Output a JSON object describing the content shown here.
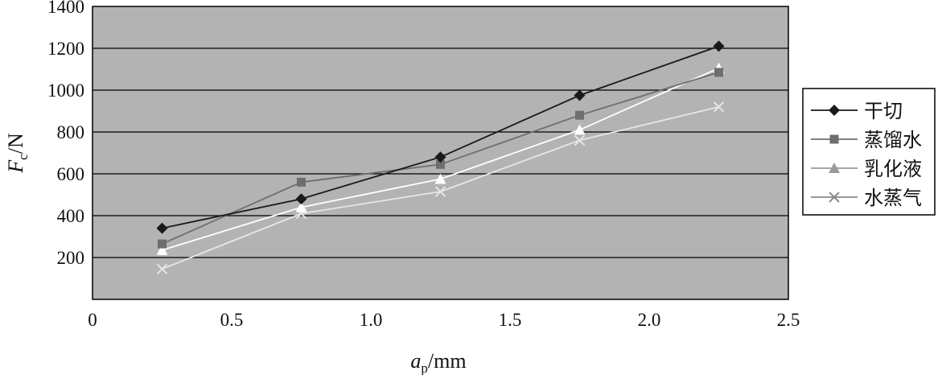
{
  "chart_data": {
    "type": "line",
    "x": [
      0.25,
      0.75,
      1.25,
      1.75,
      2.25
    ],
    "xlim": [
      0,
      2.5
    ],
    "ylim": [
      0,
      1400
    ],
    "xticks": [
      "0",
      "0.5",
      "1.0",
      "1.5",
      "2.0",
      "2.5"
    ],
    "yticks": [
      "200",
      "400",
      "600",
      "800",
      "1000",
      "1200",
      "1400"
    ],
    "xlabel": {
      "main": "a",
      "sub": "p",
      "rest": "/mm"
    },
    "ylabel": {
      "main": "F",
      "sub": "c",
      "rest": "/N"
    },
    "grid": true,
    "legend_position": "right",
    "plot_background": "#b3b3b3",
    "series": [
      {
        "name": "干切",
        "marker": "diamond",
        "color": "#1a1a1a",
        "values": [
          340,
          480,
          680,
          975,
          1210
        ]
      },
      {
        "name": "蒸馏水",
        "marker": "square",
        "color": "#6e6e6e",
        "values": [
          265,
          560,
          645,
          880,
          1085
        ]
      },
      {
        "name": "乳化液",
        "marker": "triangle",
        "color": "#ffffff",
        "legend_color": "#9a9a9a",
        "values": [
          235,
          440,
          575,
          810,
          1105
        ]
      },
      {
        "name": "水蒸气",
        "marker": "x",
        "color": "#e6e6e6",
        "legend_color": "#8a8a8a",
        "values": [
          145,
          410,
          515,
          760,
          920
        ]
      }
    ]
  }
}
